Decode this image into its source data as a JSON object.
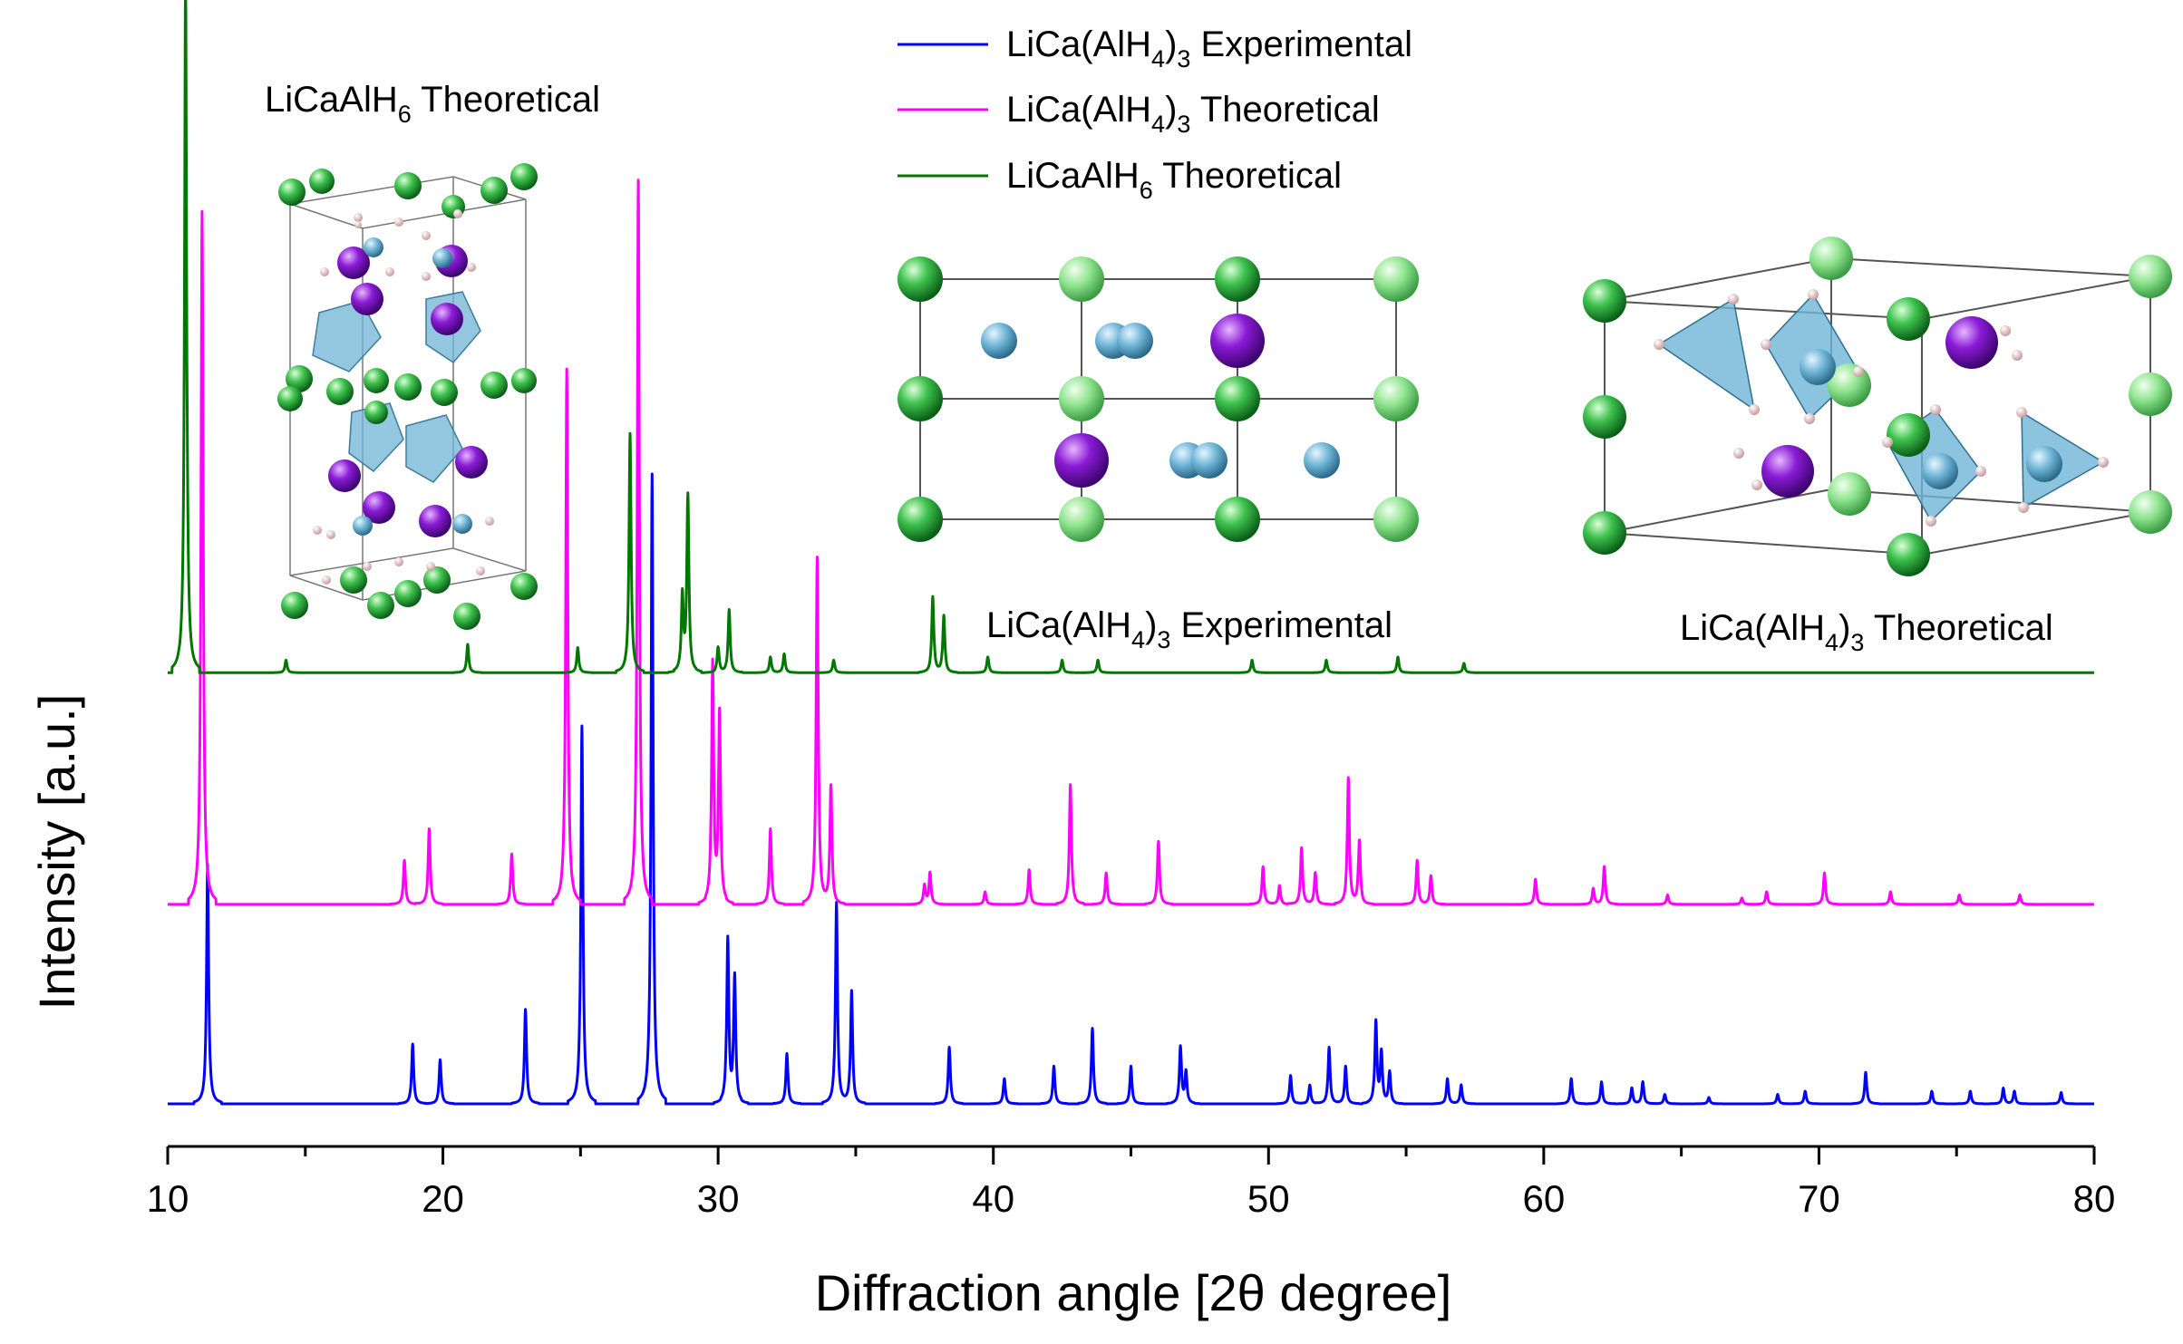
{
  "chart_data": {
    "type": "line",
    "xlabel": "Diffraction angle [2θ degree]",
    "ylabel": "Intensity [a.u.]",
    "xlim": [
      10,
      80
    ],
    "x_ticks": [
      "10",
      "20",
      "30",
      "40",
      "50",
      "60",
      "70",
      "80"
    ],
    "y_ticks": "none",
    "grid": false,
    "legend_position": "top-center",
    "series": [
      {
        "name": "LiCa(AlH4)3 Experimental",
        "color": "#0000ff",
        "baseline_level": 0.0,
        "peaks": [
          [
            11.45,
            0.38
          ],
          [
            18.9,
            0.095
          ],
          [
            19.9,
            0.07
          ],
          [
            23.0,
            0.15
          ],
          [
            25.05,
            0.6
          ],
          [
            27.6,
            1.0
          ],
          [
            30.35,
            0.26
          ],
          [
            30.6,
            0.2
          ],
          [
            32.5,
            0.08
          ],
          [
            34.3,
            0.32
          ],
          [
            34.85,
            0.18
          ],
          [
            38.4,
            0.09
          ],
          [
            40.4,
            0.04
          ],
          [
            42.2,
            0.06
          ],
          [
            43.6,
            0.12
          ],
          [
            45.0,
            0.06
          ],
          [
            46.8,
            0.09
          ],
          [
            47.0,
            0.05
          ],
          [
            50.8,
            0.045
          ],
          [
            51.5,
            0.03
          ],
          [
            52.2,
            0.09
          ],
          [
            52.8,
            0.06
          ],
          [
            53.9,
            0.13
          ],
          [
            54.1,
            0.08
          ],
          [
            54.4,
            0.05
          ],
          [
            56.5,
            0.04
          ],
          [
            57.0,
            0.03
          ],
          [
            61.0,
            0.04
          ],
          [
            62.1,
            0.035
          ],
          [
            63.2,
            0.025
          ],
          [
            63.6,
            0.035
          ],
          [
            64.4,
            0.015
          ],
          [
            66.0,
            0.01
          ],
          [
            68.5,
            0.015
          ],
          [
            69.5,
            0.02
          ],
          [
            71.7,
            0.05
          ],
          [
            74.1,
            0.02
          ],
          [
            75.5,
            0.02
          ],
          [
            76.7,
            0.025
          ],
          [
            77.1,
            0.02
          ],
          [
            78.8,
            0.018
          ]
        ]
      },
      {
        "name": "LiCa(AlH4)3 Theoretical",
        "color": "#ff00ff",
        "baseline_level": 0.31,
        "peaks": [
          [
            11.25,
            1.1
          ],
          [
            18.6,
            0.07
          ],
          [
            19.5,
            0.12
          ],
          [
            22.5,
            0.08
          ],
          [
            24.5,
            0.85
          ],
          [
            27.1,
            1.15
          ],
          [
            29.8,
            0.38
          ],
          [
            30.05,
            0.3
          ],
          [
            31.9,
            0.12
          ],
          [
            33.6,
            0.55
          ],
          [
            34.1,
            0.19
          ],
          [
            37.5,
            0.03
          ],
          [
            37.7,
            0.05
          ],
          [
            39.7,
            0.02
          ],
          [
            41.3,
            0.055
          ],
          [
            42.8,
            0.19
          ],
          [
            44.1,
            0.05
          ],
          [
            46.0,
            0.1
          ],
          [
            49.8,
            0.06
          ],
          [
            50.4,
            0.03
          ],
          [
            51.2,
            0.09
          ],
          [
            51.7,
            0.05
          ],
          [
            52.9,
            0.2
          ],
          [
            53.3,
            0.1
          ],
          [
            55.4,
            0.07
          ],
          [
            55.9,
            0.045
          ],
          [
            59.7,
            0.04
          ],
          [
            61.8,
            0.025
          ],
          [
            62.2,
            0.06
          ],
          [
            64.5,
            0.015
          ],
          [
            67.2,
            0.01
          ],
          [
            68.1,
            0.02
          ],
          [
            70.2,
            0.05
          ],
          [
            72.6,
            0.02
          ],
          [
            75.1,
            0.015
          ],
          [
            77.3,
            0.015
          ]
        ]
      },
      {
        "name": "LiCaAlH6 Theoretical",
        "color": "#007700",
        "baseline_level": 0.67,
        "peaks": [
          [
            10.65,
            1.1
          ],
          [
            14.3,
            0.02
          ],
          [
            20.9,
            0.045
          ],
          [
            24.9,
            0.04
          ],
          [
            26.8,
            0.38
          ],
          [
            28.7,
            0.12
          ],
          [
            28.9,
            0.28
          ],
          [
            30.0,
            0.04
          ],
          [
            30.4,
            0.1
          ],
          [
            31.9,
            0.025
          ],
          [
            32.4,
            0.03
          ],
          [
            34.2,
            0.02
          ],
          [
            37.8,
            0.12
          ],
          [
            38.2,
            0.09
          ],
          [
            39.8,
            0.025
          ],
          [
            42.5,
            0.02
          ],
          [
            43.8,
            0.02
          ],
          [
            49.4,
            0.02
          ],
          [
            52.1,
            0.02
          ],
          [
            54.7,
            0.025
          ],
          [
            57.1,
            0.015
          ]
        ]
      }
    ],
    "annotations": [
      {
        "text_base": "LiCaAlH",
        "sub": "6",
        "text_after": " Theoretical"
      },
      {
        "text_base": "LiCa(AlH",
        "sub": "4",
        "text_mid": ")",
        "sub2": "3",
        "text_after": " Experimental"
      },
      {
        "text_base": "LiCa(AlH",
        "sub": "4",
        "text_mid": ")",
        "sub2": "3",
        "text_after": " Theoretical"
      }
    ],
    "legend": [
      {
        "text_base": "LiCa(AlH",
        "sub": "4",
        "text_mid": ")",
        "sub2": "3",
        "text_after": " Experimental",
        "color": "#0000ff"
      },
      {
        "text_base": "LiCa(AlH",
        "sub": "4",
        "text_mid": ")",
        "sub2": "3",
        "text_after": " Theoretical",
        "color": "#ff00ff"
      },
      {
        "text_base": "LiCaAlH",
        "sub": "6",
        "text_after": " Theoretical",
        "color": "#007700"
      }
    ],
    "insets": [
      "LiCaAlH6 crystal structure",
      "LiCa(AlH4)3 projection",
      "LiCa(AlH4)3 unit cell"
    ]
  },
  "colors": {
    "li_green": "#2fb24a",
    "al_blue": "#6fb4d6",
    "ca_purple": "#8a1bd6",
    "h_pink": "#f1c9c9",
    "frame": "#555555"
  }
}
